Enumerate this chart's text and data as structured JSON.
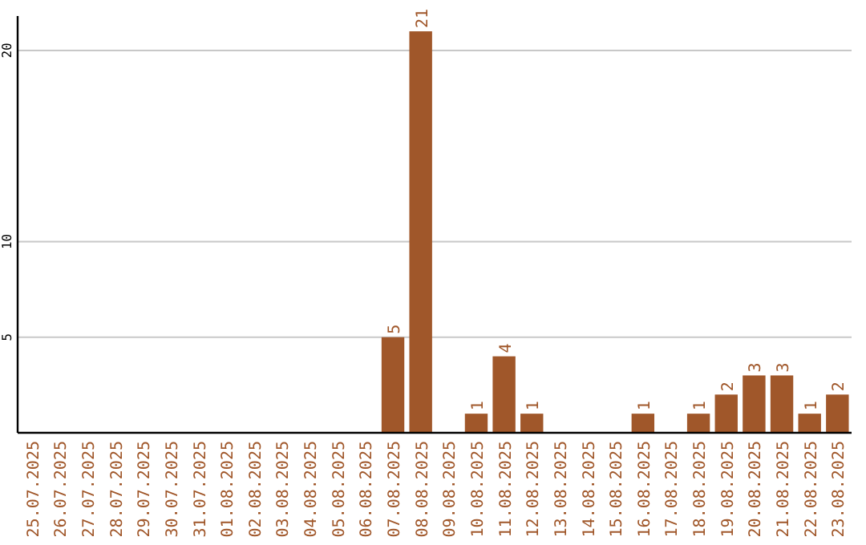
{
  "chart_data": {
    "type": "bar",
    "categories": [
      "25.07.2025",
      "26.07.2025",
      "27.07.2025",
      "28.07.2025",
      "29.07.2025",
      "30.07.2025",
      "31.07.2025",
      "01.08.2025",
      "02.08.2025",
      "03.08.2025",
      "04.08.2025",
      "05.08.2025",
      "06.08.2025",
      "07.08.2025",
      "08.08.2025",
      "09.08.2025",
      "10.08.2025",
      "11.08.2025",
      "12.08.2025",
      "13.08.2025",
      "14.08.2025",
      "15.08.2025",
      "16.08.2025",
      "17.08.2025",
      "18.08.2025",
      "19.08.2025",
      "20.08.2025",
      "21.08.2025",
      "22.08.2025",
      "23.08.2025"
    ],
    "values": [
      0,
      0,
      0,
      0,
      0,
      0,
      0,
      0,
      0,
      0,
      0,
      0,
      0,
      5,
      21,
      0,
      1,
      4,
      1,
      0,
      0,
      0,
      1,
      0,
      1,
      2,
      3,
      3,
      1,
      2
    ],
    "value_labels": [
      null,
      null,
      null,
      null,
      null,
      null,
      null,
      null,
      null,
      null,
      null,
      null,
      null,
      "5",
      "21",
      null,
      "1",
      "4",
      "1",
      null,
      null,
      null,
      "1",
      null,
      "1",
      "2",
      "3",
      "3",
      "1",
      "2"
    ],
    "color": "#a0572a",
    "ylim": [
      0,
      21.8
    ],
    "yticks": [
      5,
      10,
      20
    ],
    "grid": "y"
  }
}
